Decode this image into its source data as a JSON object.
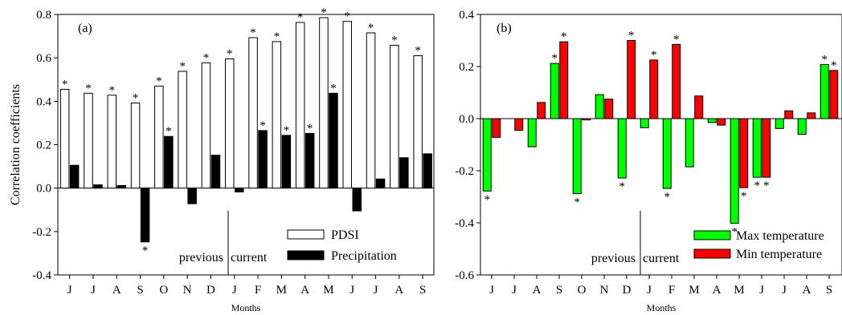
{
  "chart_data": [
    {
      "type": "bar",
      "panel_label": "(a)",
      "ylabel": "Correlation coefficients",
      "xlabel": "Months",
      "ylim": [
        -0.4,
        0.8
      ],
      "yticks": [
        "0.8",
        "0.6",
        "0.4",
        "0.2",
        "0.0",
        "-0.2",
        "-0.4"
      ],
      "ytick_values": [
        0.8,
        0.6,
        0.4,
        0.2,
        0.0,
        -0.2,
        -0.4
      ],
      "categories": [
        "J",
        "J",
        "A",
        "S",
        "O",
        "N",
        "D",
        "J",
        "F",
        "M",
        "A",
        "M",
        "J",
        "J",
        "A",
        "S"
      ],
      "annotations": {
        "left": "previous",
        "right": "current"
      },
      "series": [
        {
          "name": "PDSI",
          "color": "#ffffff",
          "values": [
            0.455,
            0.437,
            0.428,
            0.392,
            0.47,
            0.538,
            0.577,
            0.595,
            0.693,
            0.675,
            0.763,
            0.785,
            0.768,
            0.715,
            0.658,
            0.61
          ],
          "significant": [
            true,
            true,
            true,
            true,
            true,
            true,
            true,
            true,
            true,
            true,
            true,
            true,
            true,
            true,
            true,
            true
          ]
        },
        {
          "name": "Precipitation",
          "color": "#000000",
          "values": [
            0.105,
            0.015,
            0.012,
            -0.248,
            0.238,
            -0.072,
            0.152,
            -0.018,
            0.265,
            0.243,
            0.252,
            0.437,
            -0.105,
            0.042,
            0.14,
            0.158
          ],
          "significant": [
            false,
            false,
            false,
            true,
            true,
            false,
            false,
            false,
            true,
            true,
            true,
            true,
            false,
            false,
            false,
            false
          ]
        }
      ]
    },
    {
      "type": "bar",
      "panel_label": "(b)",
      "xlabel": "Months",
      "ylim": [
        -0.6,
        0.4
      ],
      "yticks": [
        "0.4",
        "0.2",
        "0.0",
        "-0.2",
        "-0.4",
        "-0.6"
      ],
      "ytick_values": [
        0.4,
        0.2,
        0.0,
        -0.2,
        -0.4,
        -0.6
      ],
      "categories": [
        "J",
        "J",
        "A",
        "S",
        "O",
        "N",
        "D",
        "J",
        "F",
        "M",
        "A",
        "M",
        "J",
        "J",
        "A",
        "S"
      ],
      "annotations": {
        "left": "previous",
        "right": "current"
      },
      "series": [
        {
          "name": "Max temperature",
          "color": "#00ff00",
          "values": [
            -0.278,
            0.0,
            -0.108,
            0.212,
            -0.288,
            0.092,
            -0.228,
            -0.035,
            -0.268,
            -0.185,
            -0.015,
            -0.402,
            -0.225,
            -0.038,
            -0.06,
            0.208
          ],
          "significant": [
            true,
            false,
            false,
            true,
            true,
            false,
            true,
            false,
            true,
            false,
            false,
            true,
            true,
            false,
            false,
            true
          ]
        },
        {
          "name": "Min temperature",
          "color": "#ff0000",
          "values": [
            -0.072,
            -0.045,
            0.062,
            0.295,
            -0.005,
            0.075,
            0.3,
            0.225,
            0.285,
            0.087,
            -0.025,
            -0.265,
            -0.225,
            0.03,
            0.022,
            0.185
          ],
          "significant": [
            false,
            false,
            false,
            true,
            false,
            false,
            true,
            true,
            true,
            false,
            false,
            true,
            true,
            false,
            false,
            true
          ]
        }
      ]
    }
  ]
}
